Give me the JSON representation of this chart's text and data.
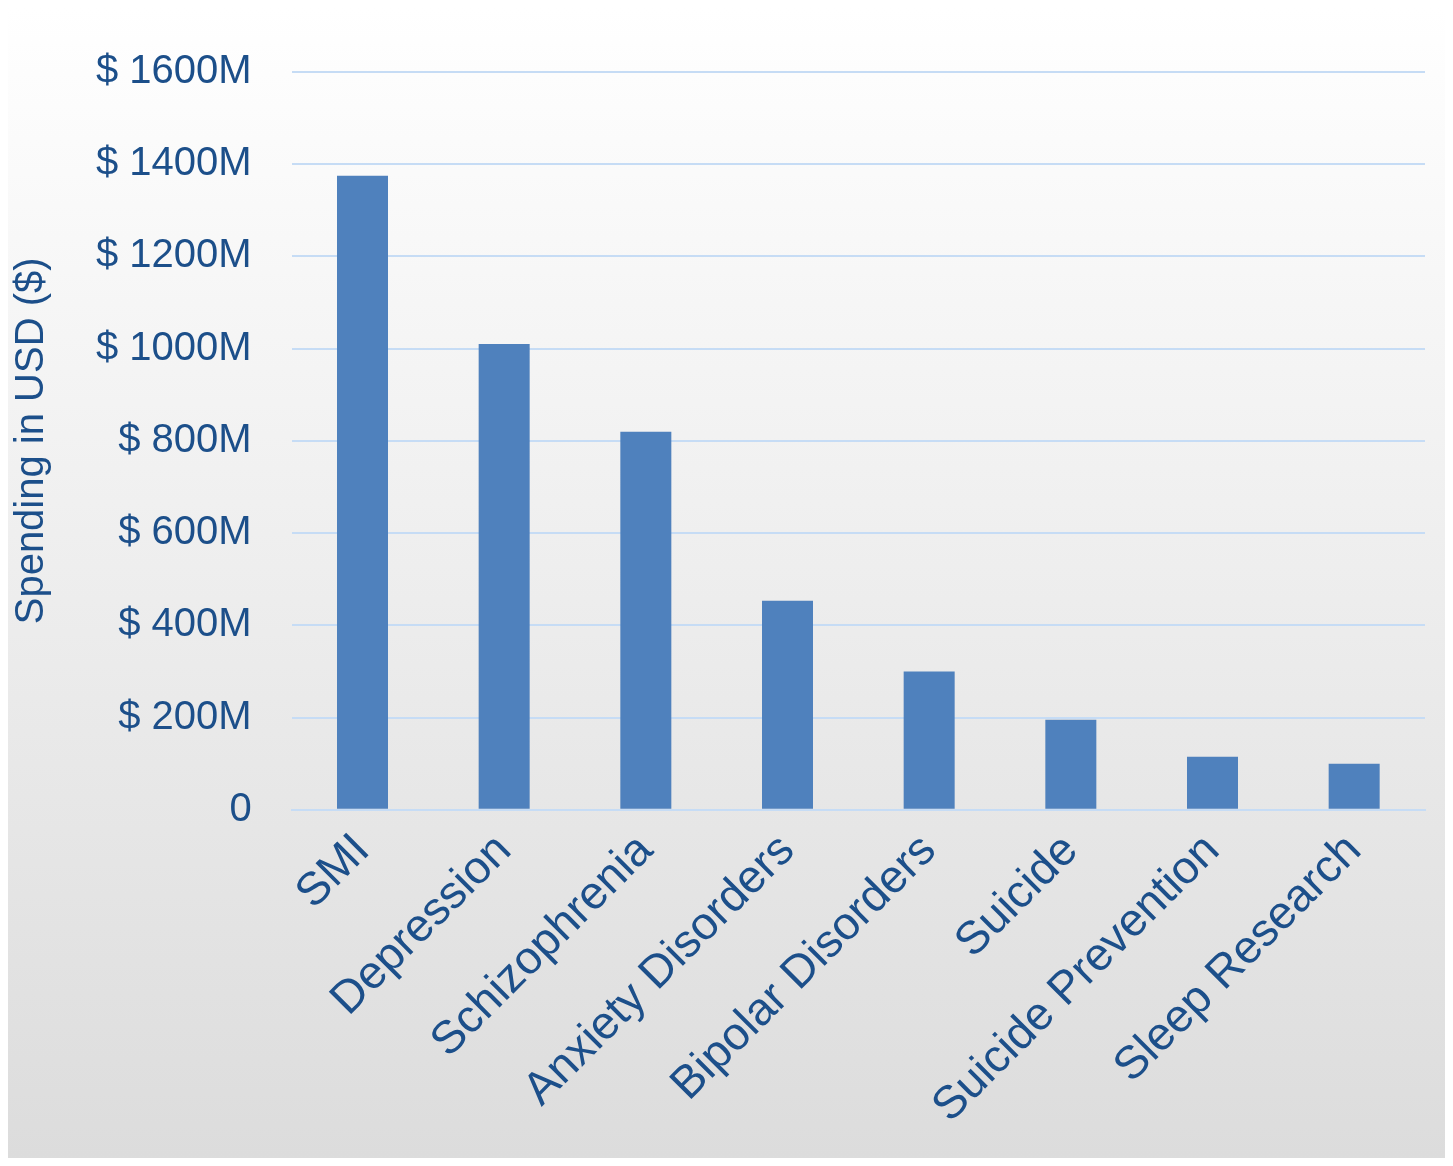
{
  "chart_data": {
    "type": "bar",
    "ylabel": "Spending in USD ($)",
    "categories": [
      "SMI",
      "Depression",
      "Schizophrenia",
      "Anxiety Disorders",
      "Bipolar Disorders",
      "Suicide",
      "Suicide Prevention",
      "Sleep Research"
    ],
    "values": [
      1375,
      1010,
      820,
      453,
      300,
      195,
      115,
      100
    ],
    "color": "#4f81bd",
    "ylim": [
      0,
      1600
    ],
    "yticks": [
      0,
      {
        "value": 200,
        "label": "$ 200M"
      },
      {
        "value": 400,
        "label": "$ 400M"
      },
      {
        "value": 600,
        "label": "$ 600M"
      },
      {
        "value": 800,
        "label": "$ 800M"
      },
      {
        "value": 1000,
        "label": "$ 1000M"
      },
      {
        "value": 1200,
        "label": "$ 1200M"
      },
      {
        "value": 1400,
        "label": "$ 1400M"
      },
      {
        "value": 1600,
        "label": "$ 1600M"
      }
    ],
    "grid": "y"
  }
}
